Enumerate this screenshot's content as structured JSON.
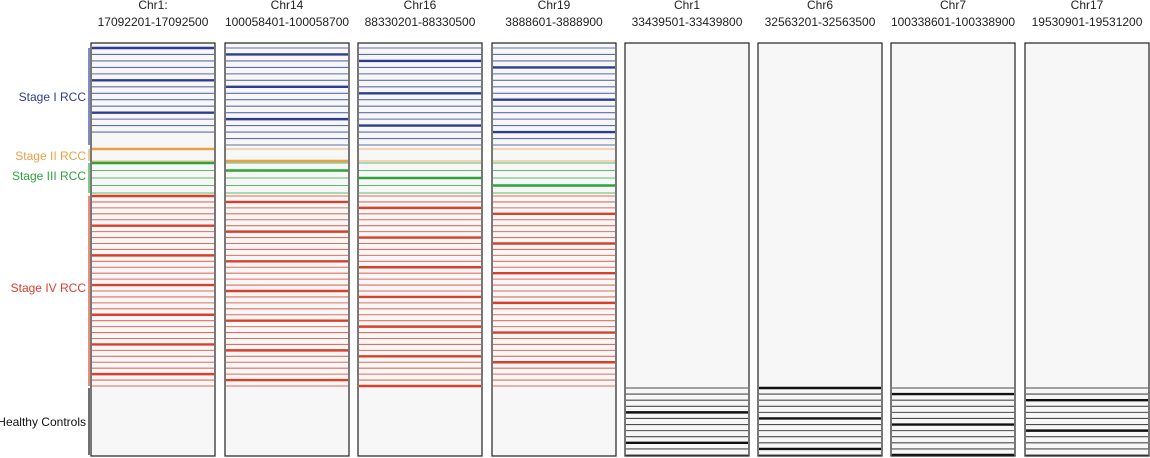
{
  "chart_data": {
    "type": "heatmap",
    "colors": {
      "stage_1": "#2e3d92",
      "stage_2": "#e8a046",
      "stage_3": "#2fa33a",
      "stage_4": "#d8402a",
      "healthy": "#111111",
      "panel_bg": "#f7f7f7",
      "border": "#222222"
    },
    "columns": [
      {
        "title_line1": "Chr1:",
        "title_line2": "17092201-17092500"
      },
      {
        "title_line1": "Chr14",
        "title_line2": "100058401-100058700"
      },
      {
        "title_line1": "Chr16",
        "title_line2": "88330201-88330500"
      },
      {
        "title_line1": "Chr19",
        "title_line2": "3888601-3888900"
      },
      {
        "title_line1": "Chr1",
        "title_line2": "33439501-33439800"
      },
      {
        "title_line1": "Chr6",
        "title_line2": "32563201-32563500"
      },
      {
        "title_line1": "Chr7",
        "title_line2": "100338601-100338900"
      },
      {
        "title_line1": "Chr17",
        "title_line2": "19530901-19531200"
      }
    ],
    "groups": [
      {
        "id": "stage_1",
        "label": "Stage I RCC",
        "n_rows": 16
      },
      {
        "id": "stage_2",
        "label": "Stage II RCC",
        "n_rows": 2
      },
      {
        "id": "stage_3",
        "label": "Stage III RCC",
        "n_rows": 5
      },
      {
        "id": "stage_4",
        "label": "Stage IV RCC",
        "n_rows": 33
      },
      {
        "id": "healthy",
        "label": "Healthy Controls",
        "n_rows": 12
      }
    ],
    "marked_rows": [
      {
        "stage_1": [
          0,
          1,
          2,
          3,
          4,
          5,
          6,
          7,
          8,
          9,
          10,
          11,
          12,
          13
        ],
        "stage_2": [
          0,
          1
        ],
        "stage_3": [
          0,
          1,
          2,
          3,
          4
        ],
        "stage_4": [
          0,
          1,
          2,
          3,
          4,
          5,
          6,
          7,
          8,
          9,
          10,
          11,
          12,
          13,
          14,
          15,
          16,
          17,
          18,
          19,
          20,
          21,
          22,
          23,
          24,
          25,
          26,
          27,
          28,
          29,
          30,
          31,
          32
        ],
        "healthy": []
      },
      {
        "stage_1": [
          0,
          1,
          2,
          3,
          4,
          5,
          6,
          7,
          8,
          9,
          10,
          11,
          12,
          13,
          14,
          15
        ],
        "stage_2": [
          0,
          1
        ],
        "stage_3": [
          0,
          1,
          2,
          3,
          4
        ],
        "stage_4": [
          0,
          1,
          2,
          3,
          4,
          5,
          6,
          7,
          8,
          9,
          10,
          11,
          12,
          13,
          14,
          15,
          16,
          17,
          18,
          19,
          20,
          21,
          22,
          23,
          24,
          25,
          26,
          27,
          28,
          29,
          30,
          31,
          32
        ],
        "healthy": []
      },
      {
        "stage_1": [
          0,
          1,
          2,
          3,
          4,
          5,
          6,
          7,
          8,
          9,
          10,
          11,
          12,
          13,
          14,
          15
        ],
        "stage_2": [
          0,
          1
        ],
        "stage_3": [
          0,
          1,
          2,
          3,
          4
        ],
        "stage_4": [
          0,
          1,
          2,
          3,
          4,
          5,
          6,
          7,
          8,
          9,
          10,
          11,
          12,
          13,
          14,
          15,
          16,
          17,
          18,
          19,
          20,
          21,
          22,
          23,
          24,
          25,
          26,
          27,
          28,
          29,
          30,
          31,
          32
        ],
        "healthy": []
      },
      {
        "stage_1": [
          0,
          1,
          2,
          3,
          4,
          5,
          6,
          7,
          8,
          9,
          10,
          11,
          12,
          13,
          14,
          15
        ],
        "stage_2": [
          0,
          1
        ],
        "stage_3": [
          0,
          1,
          2,
          3,
          4
        ],
        "stage_4": [
          0,
          1,
          2,
          3,
          4,
          5,
          6,
          7,
          8,
          9,
          10,
          11,
          12,
          13,
          14,
          15,
          16,
          17,
          18,
          19,
          20,
          21,
          22,
          23,
          24,
          25,
          26,
          27,
          28,
          29,
          30,
          31,
          32
        ],
        "healthy": []
      },
      {
        "stage_1": [],
        "stage_2": [],
        "stage_3": [],
        "stage_4": [],
        "healthy": [
          0,
          1,
          2,
          3,
          4,
          5,
          6,
          7,
          8,
          9,
          10,
          11
        ]
      },
      {
        "stage_1": [],
        "stage_2": [],
        "stage_3": [],
        "stage_4": [],
        "healthy": [
          0,
          1,
          2,
          3,
          4,
          5,
          6,
          7,
          8,
          9,
          10,
          11
        ]
      },
      {
        "stage_1": [],
        "stage_2": [],
        "stage_3": [],
        "stage_4": [],
        "healthy": [
          0,
          1,
          2,
          3,
          4,
          5,
          6,
          7,
          8,
          9,
          10,
          11
        ]
      },
      {
        "stage_1": [],
        "stage_2": [],
        "stage_3": [],
        "stage_4": [],
        "healthy": [
          0,
          1,
          2,
          3,
          4,
          5,
          6,
          7,
          8,
          9,
          10,
          11
        ]
      }
    ]
  }
}
